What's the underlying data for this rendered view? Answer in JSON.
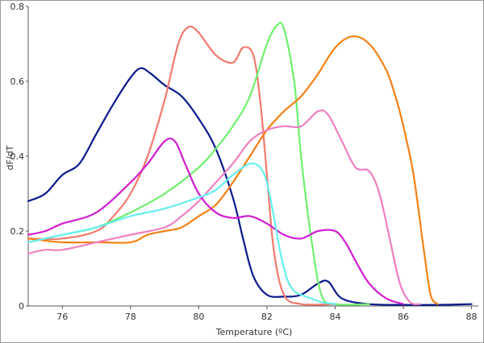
{
  "chart_data": {
    "type": "line",
    "title": "",
    "xlabel": "Temperature (ºC)",
    "ylabel": "dF/dT",
    "xlim": [
      75,
      88.2
    ],
    "ylim": [
      0,
      0.8
    ],
    "xticks": [
      76,
      78,
      80,
      82,
      84,
      86,
      88
    ],
    "yticks": [
      0,
      0.2,
      0.4,
      0.6,
      0.8
    ],
    "xtick_labels": [
      "76",
      "78",
      "80",
      "82",
      "84",
      "86",
      "88"
    ],
    "ytick_labels": [
      "0",
      "0.2",
      "0.4",
      "0.6",
      "0.8"
    ],
    "grid": false,
    "legend": "none",
    "series": [
      {
        "color": "#0a1a8c",
        "x": [
          75.0,
          75.5,
          76.0,
          76.5,
          77.0,
          77.5,
          78.0,
          78.3,
          78.6,
          79.0,
          79.5,
          80.0,
          80.5,
          81.0,
          81.3,
          81.6,
          82.0,
          82.5,
          83.0,
          83.5,
          83.8,
          84.2,
          85.0,
          86.0,
          87.0,
          88.0
        ],
        "y": [
          0.28,
          0.3,
          0.35,
          0.38,
          0.46,
          0.54,
          0.61,
          0.635,
          0.62,
          0.59,
          0.56,
          0.5,
          0.42,
          0.29,
          0.18,
          0.08,
          0.03,
          0.025,
          0.03,
          0.06,
          0.065,
          0.02,
          0.005,
          0.003,
          0.003,
          0.005
        ]
      },
      {
        "color": "#f27a6e",
        "x": [
          75.0,
          76.0,
          77.0,
          77.5,
          78.0,
          78.5,
          79.0,
          79.4,
          79.7,
          80.0,
          80.5,
          81.0,
          81.3,
          81.6,
          81.8,
          82.0,
          82.2,
          82.5,
          83.0,
          84.0
        ],
        "y": [
          0.18,
          0.18,
          0.2,
          0.24,
          0.3,
          0.4,
          0.55,
          0.7,
          0.745,
          0.73,
          0.67,
          0.65,
          0.69,
          0.67,
          0.55,
          0.35,
          0.15,
          0.03,
          0.005,
          0.005
        ]
      },
      {
        "color": "#6ef06e",
        "x": [
          75.0,
          76.0,
          77.0,
          78.0,
          79.0,
          80.0,
          80.5,
          81.0,
          81.5,
          82.0,
          82.3,
          82.5,
          82.8,
          83.0,
          83.3,
          83.6,
          84.0,
          85.0
        ],
        "y": [
          0.17,
          0.19,
          0.21,
          0.25,
          0.3,
          0.37,
          0.42,
          0.48,
          0.56,
          0.7,
          0.75,
          0.74,
          0.6,
          0.4,
          0.18,
          0.03,
          0.005,
          0.005
        ]
      },
      {
        "color": "#f58014",
        "x": [
          75.0,
          76.0,
          77.0,
          78.0,
          78.5,
          79.0,
          79.5,
          80.0,
          80.5,
          81.0,
          81.5,
          82.0,
          82.5,
          83.0,
          83.5,
          84.0,
          84.5,
          85.0,
          85.5,
          85.8,
          86.0,
          86.3,
          86.6,
          86.8,
          87.0
        ],
        "y": [
          0.18,
          0.17,
          0.17,
          0.17,
          0.19,
          0.2,
          0.21,
          0.24,
          0.27,
          0.33,
          0.4,
          0.47,
          0.52,
          0.56,
          0.62,
          0.69,
          0.72,
          0.7,
          0.63,
          0.55,
          0.48,
          0.35,
          0.15,
          0.03,
          0.005
        ]
      },
      {
        "color": "#ef7fc1",
        "x": [
          75.0,
          75.5,
          76.0,
          77.0,
          78.0,
          79.0,
          79.5,
          80.0,
          80.5,
          81.0,
          81.5,
          82.0,
          82.5,
          83.0,
          83.5,
          83.8,
          84.2,
          84.6,
          85.0,
          85.3,
          85.6,
          85.9,
          86.2,
          86.5
        ],
        "y": [
          0.14,
          0.15,
          0.15,
          0.17,
          0.19,
          0.21,
          0.24,
          0.28,
          0.33,
          0.38,
          0.44,
          0.47,
          0.48,
          0.48,
          0.52,
          0.51,
          0.44,
          0.37,
          0.36,
          0.3,
          0.18,
          0.06,
          0.01,
          0.005
        ]
      },
      {
        "color": "#d11ed1",
        "x": [
          75.0,
          75.5,
          76.0,
          77.0,
          78.0,
          78.5,
          79.0,
          79.3,
          79.6,
          80.0,
          80.5,
          81.0,
          81.5,
          82.0,
          82.5,
          83.0,
          83.5,
          84.0,
          84.3,
          84.6,
          85.0,
          85.5,
          86.0
        ],
        "y": [
          0.19,
          0.2,
          0.22,
          0.25,
          0.33,
          0.38,
          0.44,
          0.44,
          0.38,
          0.3,
          0.25,
          0.235,
          0.24,
          0.22,
          0.19,
          0.18,
          0.2,
          0.2,
          0.17,
          0.12,
          0.06,
          0.02,
          0.005
        ]
      },
      {
        "color": "#66f0f0",
        "x": [
          75.0,
          76.0,
          77.0,
          78.0,
          79.0,
          80.0,
          80.5,
          81.0,
          81.5,
          81.8,
          82.0,
          82.2,
          82.4,
          82.6,
          82.8,
          83.0,
          83.3,
          83.6,
          84.0
        ],
        "y": [
          0.17,
          0.19,
          0.21,
          0.24,
          0.26,
          0.29,
          0.31,
          0.35,
          0.38,
          0.37,
          0.33,
          0.24,
          0.14,
          0.07,
          0.04,
          0.03,
          0.02,
          0.01,
          0.005
        ]
      }
    ]
  }
}
